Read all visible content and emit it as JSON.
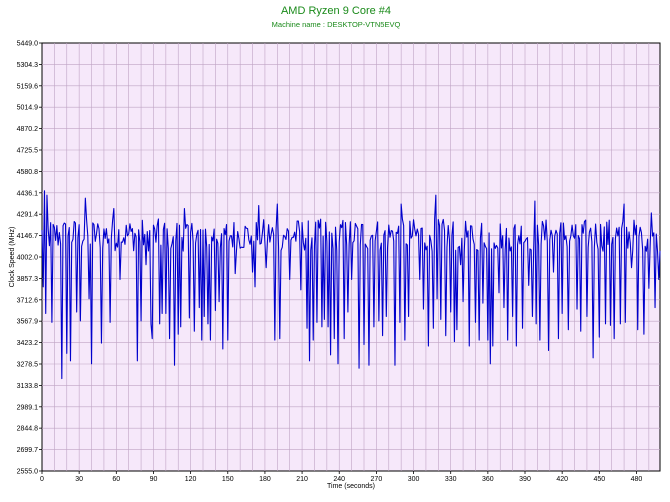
{
  "chart_data": {
    "type": "line",
    "title": "AMD Ryzen 9 Core #4",
    "subtitle": "Machine name : DESKTOP-VTN5EVQ",
    "xlabel": "Time (seconds)",
    "ylabel": "Clock Speed (MHz)",
    "xlim": [
      0,
      499
    ],
    "ylim": [
      2555.0,
      5449.0
    ],
    "x_ticks": [
      0,
      30,
      60,
      90,
      120,
      150,
      180,
      210,
      240,
      270,
      300,
      330,
      360,
      390,
      420,
      450,
      480
    ],
    "y_ticks": [
      "2555.0",
      "2699.7",
      "2844.8",
      "2989.1",
      "3133.8",
      "3278.5",
      "3423.2",
      "3567.9",
      "3712.6",
      "3857.3",
      "4002.0",
      "4146.7",
      "4291.4",
      "4436.1",
      "4580.8",
      "4725.5",
      "4870.2",
      "5014.9",
      "5159.6",
      "5304.3",
      "5449.0"
    ],
    "grid": true,
    "legend": "none",
    "colors": {
      "line": "#0000cc",
      "plot_bg": "#f6e8fa",
      "grid": "#bfa3c4",
      "title": "#1a8a1a"
    },
    "series": [
      {
        "baseline": 4150,
        "amplitude": 110,
        "peaks": [
          [
            2,
            4450
          ],
          [
            4,
            4420
          ],
          [
            35,
            4400
          ],
          [
            58,
            4330
          ],
          [
            115,
            4330
          ],
          [
            175,
            4350
          ],
          [
            190,
            4360
          ],
          [
            250,
            4340
          ],
          [
            290,
            4360
          ],
          [
            305,
            4420
          ],
          [
            318,
            4420
          ],
          [
            364,
            4520
          ],
          [
            380,
            4350
          ],
          [
            398,
            4380
          ],
          [
            470,
            4360
          ],
          [
            492,
            4300
          ]
        ],
        "dips": [
          [
            1,
            3800
          ],
          [
            3,
            3620
          ],
          [
            8,
            3560
          ],
          [
            16,
            3180
          ],
          [
            20,
            3350
          ],
          [
            23,
            3300
          ],
          [
            28,
            3630
          ],
          [
            31,
            3570
          ],
          [
            38,
            3720
          ],
          [
            40,
            3280
          ],
          [
            48,
            3420
          ],
          [
            55,
            3560
          ],
          [
            63,
            3850
          ],
          [
            77,
            3300
          ],
          [
            80,
            3570
          ],
          [
            84,
            3950
          ],
          [
            88,
            3550
          ],
          [
            89,
            3450
          ],
          [
            95,
            3550
          ],
          [
            97,
            3620
          ],
          [
            100,
            3620
          ],
          [
            103,
            3450
          ],
          [
            107,
            3270
          ],
          [
            110,
            3480
          ],
          [
            112,
            3530
          ],
          [
            119,
            3590
          ],
          [
            123,
            3500
          ],
          [
            127,
            3660
          ],
          [
            129,
            3440
          ],
          [
            131,
            3600
          ],
          [
            134,
            3550
          ],
          [
            136,
            3440
          ],
          [
            140,
            3640
          ],
          [
            143,
            3700
          ],
          [
            146,
            3380
          ],
          [
            150,
            3440
          ],
          [
            156,
            3890
          ],
          [
            170,
            3900
          ],
          [
            172,
            3800
          ],
          [
            181,
            3930
          ],
          [
            188,
            3440
          ],
          [
            192,
            3450
          ],
          [
            200,
            3850
          ],
          [
            209,
            3780
          ],
          [
            214,
            3520
          ],
          [
            216,
            3300
          ],
          [
            219,
            3440
          ],
          [
            222,
            3560
          ],
          [
            226,
            3530
          ],
          [
            228,
            3580
          ],
          [
            231,
            3530
          ],
          [
            233,
            3340
          ],
          [
            236,
            3450
          ],
          [
            239,
            3280
          ],
          [
            244,
            3450
          ],
          [
            247,
            3630
          ],
          [
            250,
            3850
          ],
          [
            256,
            3250
          ],
          [
            260,
            3410
          ],
          [
            264,
            3270
          ],
          [
            268,
            3530
          ],
          [
            272,
            3570
          ],
          [
            275,
            3470
          ],
          [
            278,
            3600
          ],
          [
            285,
            3270
          ],
          [
            289,
            3560
          ],
          [
            293,
            3440
          ],
          [
            296,
            3600
          ],
          [
            305,
            3850
          ],
          [
            308,
            3650
          ],
          [
            312,
            3400
          ],
          [
            316,
            3520
          ],
          [
            319,
            3720
          ],
          [
            322,
            3580
          ],
          [
            326,
            3470
          ],
          [
            330,
            3630
          ],
          [
            333,
            3430
          ],
          [
            335,
            3510
          ],
          [
            338,
            3950
          ],
          [
            340,
            3700
          ],
          [
            345,
            3400
          ],
          [
            350,
            3560
          ],
          [
            353,
            3440
          ],
          [
            356,
            3690
          ],
          [
            360,
            3440
          ],
          [
            362,
            3280
          ],
          [
            364,
            3400
          ],
          [
            369,
            3760
          ],
          [
            373,
            3660
          ],
          [
            376,
            3440
          ],
          [
            380,
            3600
          ],
          [
            383,
            3400
          ],
          [
            388,
            3520
          ],
          [
            393,
            3810
          ],
          [
            396,
            3600
          ],
          [
            399,
            3550
          ],
          [
            402,
            3440
          ],
          [
            409,
            3370
          ],
          [
            413,
            3900
          ],
          [
            417,
            3450
          ],
          [
            420,
            3620
          ],
          [
            425,
            3510
          ],
          [
            432,
            3650
          ],
          [
            435,
            3500
          ],
          [
            440,
            3600
          ],
          [
            445,
            3320
          ],
          [
            450,
            3460
          ],
          [
            455,
            3550
          ],
          [
            459,
            3540
          ],
          [
            462,
            3450
          ],
          [
            467,
            3550
          ],
          [
            471,
            3560
          ],
          [
            476,
            3930
          ],
          [
            481,
            3510
          ],
          [
            486,
            3480
          ],
          [
            490,
            3790
          ],
          [
            495,
            3660
          ],
          [
            498,
            3850
          ]
        ]
      }
    ]
  }
}
